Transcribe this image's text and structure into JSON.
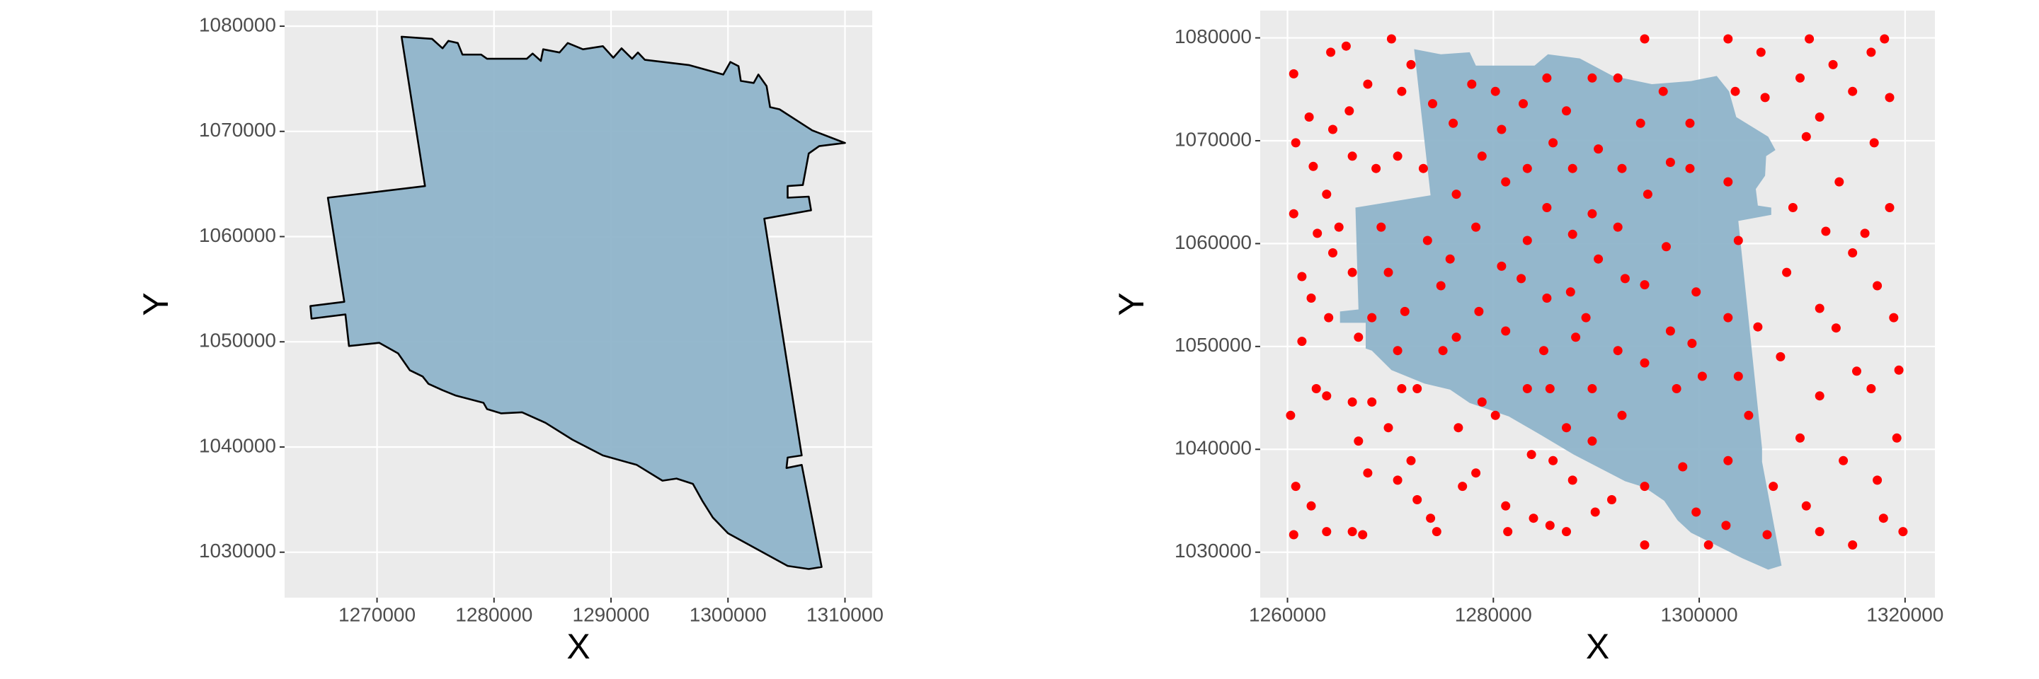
{
  "chart_data": [
    {
      "type": "map",
      "xlabel": "X",
      "ylabel": "Y",
      "xlim": [
        1262100,
        1312330
      ],
      "ylim": [
        1025680,
        1081480
      ],
      "xticks": [
        1270000,
        1280000,
        1290000,
        1300000,
        1310000
      ],
      "yticks": [
        1030000,
        1040000,
        1050000,
        1060000,
        1070000,
        1080000
      ],
      "grid": true,
      "polygon": {
        "color": "#8fb4ca",
        "outline": "#000000",
        "x": [
          1272100,
          1274700,
          1275600,
          1276100,
          1276900,
          1277300,
          1278900,
          1279400,
          1282800,
          1283300,
          1284000,
          1284200,
          1285600,
          1286300,
          1287600,
          1289300,
          1290200,
          1290900,
          1291800,
          1292300,
          1292900,
          1296700,
          1299600,
          1300200,
          1300900,
          1301100,
          1302200,
          1302600,
          1303300,
          1303600,
          1304400,
          1307200,
          1310000,
          1307800,
          1306900,
          1306700,
          1306400,
          1305100,
          1305100,
          1306900,
          1307100,
          1303100,
          1306300,
          1305100,
          1305000,
          1306300,
          1308000,
          1306900,
          1305100,
          1300000,
          1298700,
          1297800,
          1297000,
          1295600,
          1294400,
          1292200,
          1289300,
          1286700,
          1284400,
          1282400,
          1280600,
          1279400,
          1279100,
          1276700,
          1275600,
          1274400,
          1273900,
          1272800,
          1271800,
          1270200,
          1267600,
          1267300,
          1264400,
          1264300,
          1267200,
          1265800,
          1274100
        ],
        "y": [
          1079000,
          1078800,
          1077900,
          1078600,
          1078400,
          1077300,
          1077300,
          1076900,
          1076900,
          1077400,
          1076700,
          1077800,
          1077500,
          1078400,
          1077800,
          1078100,
          1077000,
          1077900,
          1076900,
          1077500,
          1076800,
          1076300,
          1075400,
          1076600,
          1076200,
          1074800,
          1074600,
          1075400,
          1074300,
          1072300,
          1072100,
          1070100,
          1068900,
          1068600,
          1067900,
          1066700,
          1064900,
          1064800,
          1063700,
          1063800,
          1062500,
          1061700,
          1039200,
          1039000,
          1038000,
          1038300,
          1028600,
          1028400,
          1028700,
          1031800,
          1033300,
          1034900,
          1036500,
          1037000,
          1036800,
          1038300,
          1039200,
          1040700,
          1042300,
          1043300,
          1043200,
          1043600,
          1044200,
          1044900,
          1045400,
          1046000,
          1046700,
          1047300,
          1048900,
          1049900,
          1049600,
          1052600,
          1052200,
          1053400,
          1053800,
          1063700,
          1064800
        ]
      }
    },
    {
      "type": "map",
      "xlabel": "X",
      "ylabel": "Y",
      "xlim": [
        1257350,
        1322900
      ],
      "ylim": [
        1025580,
        1082650
      ],
      "xticks": [
        1260000,
        1280000,
        1300000,
        1320000
      ],
      "yticks": [
        1030000,
        1040000,
        1050000,
        1060000,
        1070000,
        1080000
      ],
      "grid": true,
      "polygon": {
        "color": "#8fb4ca",
        "x": [
          1272300,
          1274900,
          1277700,
          1278300,
          1284000,
          1285300,
          1288400,
          1291600,
          1295400,
          1299200,
          1301700,
          1302900,
          1303600,
          1306700,
          1307400,
          1306500,
          1306400,
          1305500,
          1305700,
          1307000,
          1307000,
          1303800,
          1306100,
          1306100,
          1308000,
          1306700,
          1304200,
          1299200,
          1297900,
          1296600,
          1294700,
          1292800,
          1287800,
          1284600,
          1281500,
          1277700,
          1275800,
          1273300,
          1270100,
          1268200,
          1267600,
          1267600,
          1265100,
          1265100,
          1266900,
          1266600,
          1273900
        ],
        "y": [
          1078900,
          1078400,
          1078600,
          1077300,
          1077300,
          1078400,
          1078000,
          1076300,
          1075500,
          1075800,
          1076300,
          1074800,
          1072300,
          1070400,
          1069100,
          1068500,
          1066600,
          1065300,
          1063700,
          1063500,
          1062800,
          1062200,
          1040100,
          1038800,
          1028700,
          1028300,
          1029400,
          1031900,
          1033100,
          1035000,
          1036300,
          1036900,
          1039500,
          1041400,
          1043200,
          1044500,
          1045800,
          1046400,
          1047700,
          1049600,
          1049800,
          1052300,
          1052300,
          1053400,
          1053600,
          1063500,
          1064700
        ]
      },
      "points": {
        "color": "#ff0000",
        "x": [
          1260600,
          1260800,
          1260600,
          1261400,
          1261400,
          1260300,
          1260800,
          1260600,
          1262100,
          1262500,
          1262900,
          1262300,
          1262800,
          1262300,
          1264200,
          1264400,
          1263800,
          1264400,
          1264000,
          1263800,
          1263800,
          1265700,
          1266000,
          1266300,
          1265000,
          1266300,
          1266900,
          1266300,
          1266900,
          1266300,
          1267800,
          1268600,
          1269100,
          1268200,
          1268200,
          1267800,
          1267300,
          1270100,
          1271100,
          1270700,
          1269800,
          1270700,
          1271100,
          1269800,
          1270700,
          1272000,
          1272600,
          1271400,
          1272000,
          1272600,
          1273900,
          1274500,
          1273200,
          1274100,
          1273600,
          1274900,
          1275100,
          1276100,
          1276400,
          1275800,
          1276400,
          1276600,
          1277000,
          1277900,
          1278900,
          1278300,
          1278600,
          1278900,
          1278300,
          1280200,
          1280800,
          1281200,
          1280800,
          1281200,
          1280200,
          1281200,
          1281400,
          1282900,
          1283300,
          1283300,
          1282700,
          1283300,
          1283700,
          1283900,
          1285200,
          1285800,
          1285200,
          1285200,
          1284900,
          1285500,
          1285800,
          1285500,
          1287100,
          1287700,
          1287700,
          1287500,
          1288000,
          1287100,
          1287700,
          1287100,
          1289600,
          1290200,
          1289600,
          1290200,
          1289000,
          1289600,
          1289600,
          1289900,
          1292100,
          1292500,
          1292100,
          1292800,
          1292100,
          1292500,
          1291500,
          1294700,
          1294300,
          1295000,
          1294700,
          1294700,
          1294700,
          1294700,
          1296500,
          1297200,
          1296800,
          1297200,
          1297800,
          1298400,
          1299100,
          1299100,
          1299700,
          1299300,
          1300300,
          1299700,
          1300900,
          1302800,
          1303500,
          1302800,
          1303800,
          1302800,
          1303800,
          1302800,
          1302600,
          1306000,
          1306400,
          1305700,
          1304800,
          1306600,
          1307200,
          1307900,
          1308500,
          1309100,
          1310400,
          1310700,
          1309800,
          1309800,
          1310400,
          1311700,
          1312300,
          1311700,
          1311700,
          1311700,
          1313000,
          1313600,
          1313300,
          1314000,
          1314900,
          1314900,
          1315300,
          1314900,
          1316700,
          1317000,
          1317300,
          1316700,
          1317300,
          1317900,
          1318500,
          1318900,
          1319200,
          1319400,
          1319800,
          1318000,
          1318500,
          1316100
        ],
        "y": [
          1076500,
          1069800,
          1062900,
          1056800,
          1050500,
          1043300,
          1036400,
          1031700,
          1072300,
          1067500,
          1061000,
          1054700,
          1045900,
          1034500,
          1078600,
          1071100,
          1064800,
          1059100,
          1052800,
          1045200,
          1032000,
          1079200,
          1072900,
          1068500,
          1061600,
          1057200,
          1050900,
          1044600,
          1040800,
          1032000,
          1075500,
          1067300,
          1061600,
          1052800,
          1044600,
          1037700,
          1031700,
          1079900,
          1074800,
          1068500,
          1057200,
          1049600,
          1045900,
          1042100,
          1037000,
          1077400,
          1045900,
          1053400,
          1038900,
          1035100,
          1033300,
          1032000,
          1067300,
          1073600,
          1060300,
          1055900,
          1049600,
          1071700,
          1064800,
          1058500,
          1050900,
          1042100,
          1036400,
          1075500,
          1068500,
          1061600,
          1053400,
          1044600,
          1037700,
          1074800,
          1071100,
          1066000,
          1057800,
          1051500,
          1043300,
          1034500,
          1032000,
          1073600,
          1067300,
          1060300,
          1056600,
          1045900,
          1039500,
          1033300,
          1076100,
          1069800,
          1063500,
          1054700,
          1049600,
          1045900,
          1038900,
          1032600,
          1072900,
          1067300,
          1060900,
          1055300,
          1050900,
          1042100,
          1037000,
          1032000,
          1076100,
          1069200,
          1062900,
          1058500,
          1052800,
          1045900,
          1040800,
          1033900,
          1076100,
          1067300,
          1061600,
          1056600,
          1049600,
          1043300,
          1035100,
          1079900,
          1071700,
          1064800,
          1056000,
          1048400,
          1036400,
          1030700,
          1074800,
          1067900,
          1059700,
          1051500,
          1045900,
          1038300,
          1067300,
          1071700,
          1055300,
          1050300,
          1047100,
          1033900,
          1030700,
          1079900,
          1074800,
          1066000,
          1060300,
          1052800,
          1047100,
          1038900,
          1032600,
          1078600,
          1074200,
          1051900,
          1043300,
          1031700,
          1036400,
          1049000,
          1057200,
          1063500,
          1070400,
          1079900,
          1076100,
          1041100,
          1034500,
          1072300,
          1061200,
          1053700,
          1045200,
          1032000,
          1077400,
          1066000,
          1051800,
          1038900,
          1074800,
          1059100,
          1047600,
          1030700,
          1078600,
          1069800,
          1055900,
          1045900,
          1037000,
          1033300,
          1063500,
          1052800,
          1041100,
          1047700,
          1032000,
          1079900,
          1074200,
          1061000
        ]
      }
    }
  ]
}
